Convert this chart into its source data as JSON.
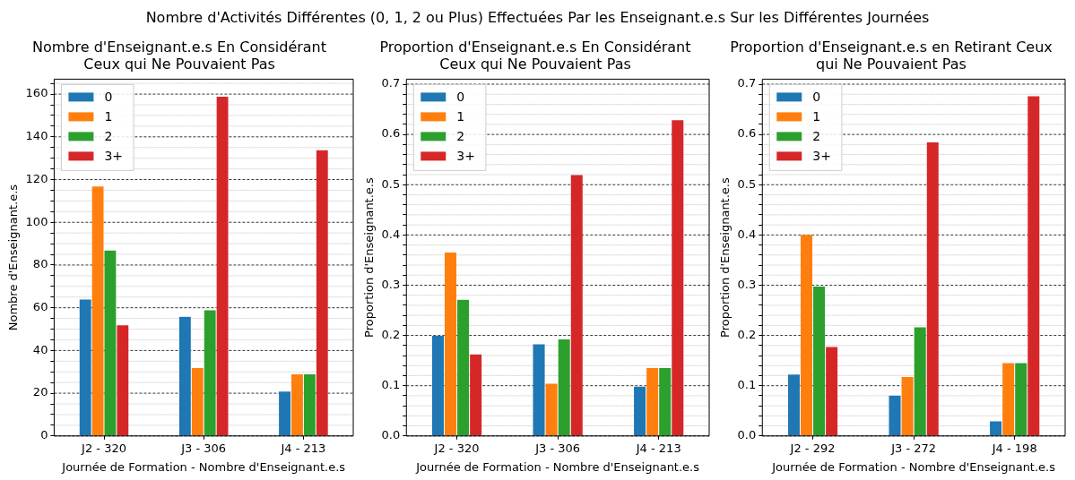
{
  "chart_data": [
    {
      "type": "other",
      "title": "Nombre d'Activités Différentes (0, 1, 2 ou Plus) Effectuées Par les Enseignant.e.s Sur les Différentes Journées"
    },
    {
      "type": "bar",
      "title": "Nombre d'Enseignant.e.s En Considérant Ceux qui Ne Pouvaient Pas",
      "xlabel": "Journée de Formation - Nombre d'Enseignant.e.s",
      "ylabel": "Nombre d'Enseignant.e.s",
      "categories": [
        "J2 - 320",
        "J3 - 306",
        "J4 - 213"
      ],
      "series": [
        {
          "name": "0",
          "color": "#1f77b4",
          "values": [
            64,
            56,
            21
          ]
        },
        {
          "name": "1",
          "color": "#ff7f0e",
          "values": [
            117,
            32,
            29
          ]
        },
        {
          "name": "2",
          "color": "#2ca02c",
          "values": [
            87,
            59,
            29
          ]
        },
        {
          "name": "3+",
          "color": "#d62728",
          "values": [
            52,
            159,
            134
          ]
        }
      ],
      "ylim": [
        0,
        167
      ],
      "yticks": [
        0,
        {
          "value": 5,
          "label": null
        },
        {
          "value": 10,
          "label": null
        },
        {
          "value": 15,
          "label": null
        },
        20,
        {
          "value": 25,
          "label": null
        },
        {
          "value": 30,
          "label": null
        },
        {
          "value": 35,
          "label": null
        },
        40,
        {
          "value": 45,
          "label": null
        },
        {
          "value": 50,
          "label": null
        },
        {
          "value": 55,
          "label": null
        },
        60,
        {
          "value": 65,
          "label": null
        },
        {
          "value": 70,
          "label": null
        },
        {
          "value": 75,
          "label": null
        },
        80,
        {
          "value": 85,
          "label": null
        },
        {
          "value": 90,
          "label": null
        },
        {
          "value": 95,
          "label": null
        },
        100,
        {
          "value": 105,
          "label": null
        },
        {
          "value": 110,
          "label": null
        },
        {
          "value": 115,
          "label": null
        },
        120,
        {
          "value": 125,
          "label": null
        },
        {
          "value": 130,
          "label": null
        },
        {
          "value": 135,
          "label": null
        },
        140,
        {
          "value": 145,
          "label": null
        },
        {
          "value": 150,
          "label": null
        },
        {
          "value": 155,
          "label": null
        },
        160,
        {
          "value": 165,
          "label": null
        }
      ],
      "grid": true,
      "legend": "top left"
    },
    {
      "type": "bar",
      "title": "Proportion d'Enseignant.e.s En Considérant Ceux qui Ne Pouvaient Pas",
      "xlabel": "Journée de Formation - Nombre d'Enseignant.e.s",
      "ylabel": "Proportion d'Enseignant.e.s",
      "categories": [
        "J2 - 320",
        "J3 - 306",
        "J4 - 213"
      ],
      "series": [
        {
          "name": "0",
          "color": "#1f77b4",
          "values": [
            0.2,
            0.183,
            0.099
          ]
        },
        {
          "name": "1",
          "color": "#ff7f0e",
          "values": [
            0.366,
            0.105,
            0.136
          ]
        },
        {
          "name": "2",
          "color": "#2ca02c",
          "values": [
            0.272,
            0.193,
            0.136
          ]
        },
        {
          "name": "3+",
          "color": "#d62728",
          "values": [
            0.163,
            0.52,
            0.629
          ]
        }
      ],
      "ylim": [
        0,
        0.71
      ],
      "yticks": [
        {
          "value": 0,
          "label": "0.0"
        },
        {
          "value": 0.02,
          "label": null
        },
        {
          "value": 0.04,
          "label": null
        },
        {
          "value": 0.06,
          "label": null
        },
        {
          "value": 0.08,
          "label": null
        },
        0.1,
        {
          "value": 0.12,
          "label": null
        },
        {
          "value": 0.14,
          "label": null
        },
        {
          "value": 0.16,
          "label": null
        },
        {
          "value": 0.18,
          "label": null
        },
        0.2,
        {
          "value": 0.22,
          "label": null
        },
        {
          "value": 0.24,
          "label": null
        },
        {
          "value": 0.26,
          "label": null
        },
        {
          "value": 0.28,
          "label": null
        },
        0.3,
        {
          "value": 0.32,
          "label": null
        },
        {
          "value": 0.34,
          "label": null
        },
        {
          "value": 0.36,
          "label": null
        },
        {
          "value": 0.38,
          "label": null
        },
        0.4,
        {
          "value": 0.42,
          "label": null
        },
        {
          "value": 0.44,
          "label": null
        },
        {
          "value": 0.46,
          "label": null
        },
        {
          "value": 0.48,
          "label": null
        },
        0.5,
        {
          "value": 0.52,
          "label": null
        },
        {
          "value": 0.54,
          "label": null
        },
        {
          "value": 0.56,
          "label": null
        },
        {
          "value": 0.58,
          "label": null
        },
        0.6,
        {
          "value": 0.62,
          "label": null
        },
        {
          "value": 0.64,
          "label": null
        },
        {
          "value": 0.66,
          "label": null
        },
        {
          "value": 0.68,
          "label": null
        },
        0.7
      ],
      "grid": true,
      "legend": "top left"
    },
    {
      "type": "bar",
      "title": "Proportion d'Enseignant.e.s en Retirant Ceux qui Ne Pouvaient Pas",
      "xlabel": "Journée de Formation - Nombre d'Enseignant.e.s",
      "ylabel": "Proportion d'Enseignant.e.s",
      "categories": [
        "J2 - 292",
        "J3 - 272",
        "J4 - 198"
      ],
      "series": [
        {
          "name": "0",
          "color": "#1f77b4",
          "values": [
            0.123,
            0.081,
            0.03
          ]
        },
        {
          "name": "1",
          "color": "#ff7f0e",
          "values": [
            0.401,
            0.118,
            0.146
          ]
        },
        {
          "name": "2",
          "color": "#2ca02c",
          "values": [
            0.298,
            0.217,
            0.146
          ]
        },
        {
          "name": "3+",
          "color": "#d62728",
          "values": [
            0.178,
            0.585,
            0.677
          ]
        }
      ],
      "ylim": [
        0,
        0.71
      ],
      "yticks": [
        {
          "value": 0,
          "label": "0.0"
        },
        {
          "value": 0.02,
          "label": null
        },
        {
          "value": 0.04,
          "label": null
        },
        {
          "value": 0.06,
          "label": null
        },
        {
          "value": 0.08,
          "label": null
        },
        0.1,
        {
          "value": 0.12,
          "label": null
        },
        {
          "value": 0.14,
          "label": null
        },
        {
          "value": 0.16,
          "label": null
        },
        {
          "value": 0.18,
          "label": null
        },
        0.2,
        {
          "value": 0.22,
          "label": null
        },
        {
          "value": 0.24,
          "label": null
        },
        {
          "value": 0.26,
          "label": null
        },
        {
          "value": 0.28,
          "label": null
        },
        0.3,
        {
          "value": 0.32,
          "label": null
        },
        {
          "value": 0.34,
          "label": null
        },
        {
          "value": 0.36,
          "label": null
        },
        {
          "value": 0.38,
          "label": null
        },
        0.4,
        {
          "value": 0.42,
          "label": null
        },
        {
          "value": 0.44,
          "label": null
        },
        {
          "value": 0.46,
          "label": null
        },
        {
          "value": 0.48,
          "label": null
        },
        0.5,
        {
          "value": 0.52,
          "label": null
        },
        {
          "value": 0.54,
          "label": null
        },
        {
          "value": 0.56,
          "label": null
        },
        {
          "value": 0.58,
          "label": null
        },
        0.6,
        {
          "value": 0.62,
          "label": null
        },
        {
          "value": 0.64,
          "label": null
        },
        {
          "value": 0.66,
          "label": null
        },
        {
          "value": 0.68,
          "label": null
        },
        0.7
      ],
      "grid": true,
      "legend": "top left"
    }
  ]
}
